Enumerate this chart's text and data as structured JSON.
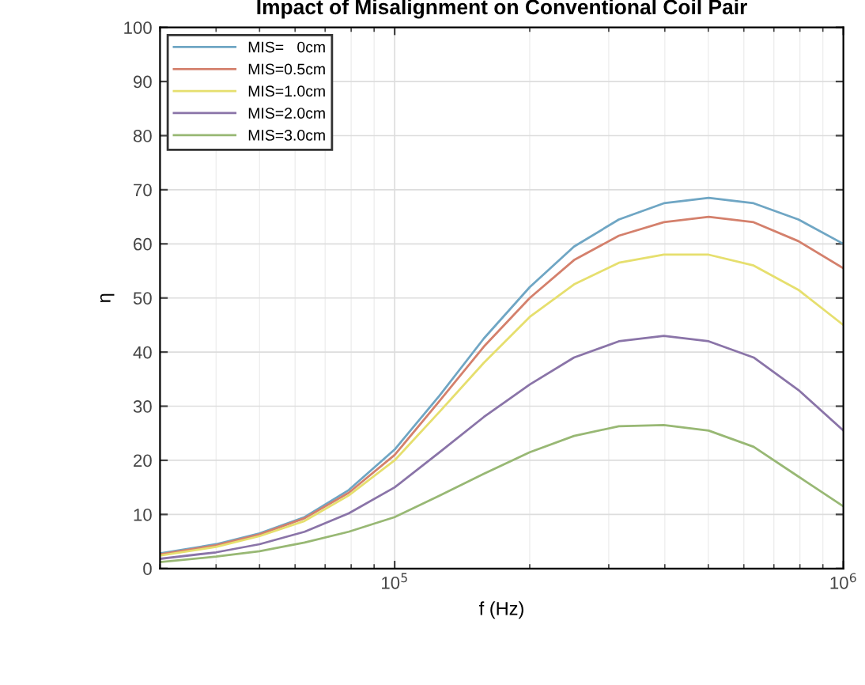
{
  "chart_data": {
    "type": "line",
    "title": "Impact of Misalignment on Conventional Coil Pair",
    "xlabel": "f (Hz)",
    "ylabel": "η",
    "x": [
      30000,
      40000,
      50000,
      63000,
      79000,
      100000,
      126000,
      158000,
      200000,
      251000,
      316000,
      398000,
      501000,
      631000,
      794000,
      1000000
    ],
    "series": [
      {
        "name": "MIS=   0cm",
        "color": "#6fa6c4",
        "values": [
          2.8,
          4.5,
          6.5,
          9.5,
          14.5,
          22,
          32,
          42.5,
          52,
          59.5,
          64.5,
          67.5,
          68.5,
          67.5,
          64.5,
          60
        ]
      },
      {
        "name": "MIS=0.5cm",
        "color": "#d4806c",
        "values": [
          2.6,
          4.3,
          6.3,
          9.3,
          14,
          21,
          31,
          41,
          50,
          57,
          61.5,
          64,
          65,
          64,
          60.5,
          55.5
        ]
      },
      {
        "name": "MIS=1.0cm",
        "color": "#e6df6e",
        "values": [
          2.4,
          4.0,
          6.0,
          8.8,
          13.5,
          20,
          29,
          38,
          46.5,
          52.5,
          56.5,
          58,
          58,
          56,
          51.5,
          45
        ]
      },
      {
        "name": "MIS=2.0cm",
        "color": "#8a74a8",
        "values": [
          1.8,
          3.0,
          4.5,
          6.8,
          10.2,
          15,
          21.5,
          28,
          34,
          39,
          42,
          43,
          42,
          39,
          33,
          25.5
        ]
      },
      {
        "name": "MIS=3.0cm",
        "color": "#98b874",
        "values": [
          1.2,
          2.2,
          3.2,
          4.8,
          6.8,
          9.5,
          13.5,
          17.5,
          21.5,
          24.5,
          26.3,
          26.5,
          25.5,
          22.5,
          17,
          11.5
        ]
      }
    ],
    "log": "x",
    "xlim": [
      30000,
      1000000
    ],
    "xticks": [
      {
        "value": 100000,
        "label": "10$^{5}$"
      },
      {
        "value": 1000000,
        "label": "10$^{6}$"
      }
    ],
    "ylim": [
      0,
      100
    ],
    "yticks": [
      0,
      10,
      20,
      30,
      40,
      50,
      60,
      70,
      80,
      90,
      100
    ],
    "grid": true,
    "legend": "top left",
    "marker": "none",
    "line_style": "solid"
  }
}
